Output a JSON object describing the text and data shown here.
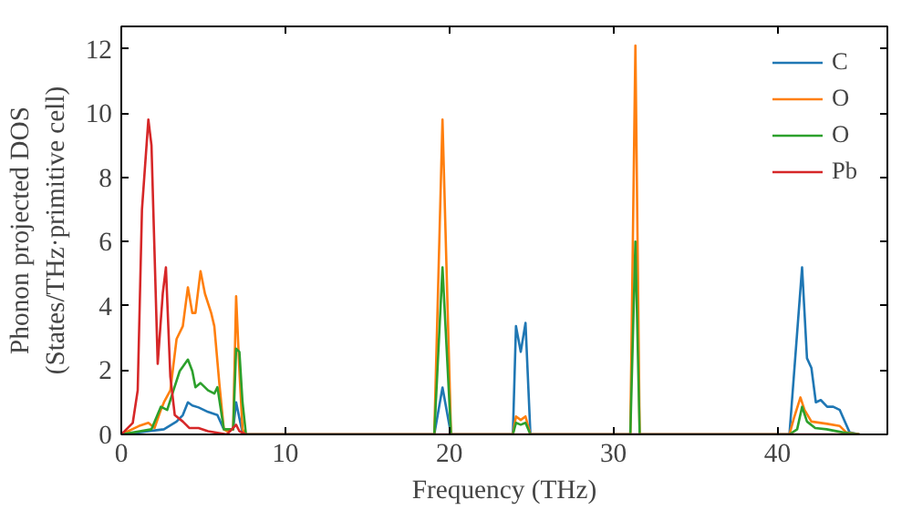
{
  "chart_data": {
    "type": "line",
    "xlabel": "Frequency (THz)",
    "ylabel": "Phonon projected DOS\n(States/THz·primitive cell)",
    "xlim": [
      0,
      46.7
    ],
    "ylim": [
      0,
      12.7
    ],
    "xticks": [
      0,
      10,
      20,
      30,
      40
    ],
    "yticks": [
      0,
      2,
      4,
      6,
      8,
      10,
      12
    ],
    "grid": false,
    "legend": "top right",
    "marker": "none",
    "line_style": "solid",
    "series": [
      {
        "name": "C",
        "color": "#1f77b4",
        "x": [
          0,
          2.6,
          3.37,
          3.75,
          4.06,
          4.33,
          4.71,
          5.29,
          5.86,
          6.25,
          6.82,
          7.0,
          7.2,
          7.39,
          7.6,
          19.08,
          19.58,
          20.1,
          23.87,
          24.06,
          24.35,
          24.64,
          24.94,
          40.73,
          41.5,
          41.8,
          42.07,
          42.34,
          42.64,
          43.03,
          43.4,
          43.8,
          44.4,
          45
        ],
        "values": [
          0,
          0.16,
          0.4,
          0.6,
          1.0,
          0.9,
          0.84,
          0.7,
          0.6,
          0.16,
          0.16,
          1.0,
          0.5,
          0.06,
          0,
          0,
          1.46,
          0,
          0,
          3.37,
          2.57,
          3.47,
          0,
          0,
          5.2,
          2.37,
          2.07,
          1.0,
          1.07,
          0.86,
          0.86,
          0.76,
          0.06,
          0
        ]
      },
      {
        "name": "O",
        "color": "#ff7f0e",
        "x": [
          0,
          1.07,
          1.65,
          2.03,
          2.41,
          2.6,
          2.99,
          3.37,
          3.75,
          4.06,
          4.33,
          4.52,
          4.83,
          5.1,
          5.48,
          5.67,
          5.98,
          6.25,
          6.44,
          6.82,
          7.0,
          7.2,
          7.39,
          7.6,
          19.08,
          19.58,
          20.1,
          23.87,
          24.06,
          24.35,
          24.64,
          24.94,
          31.03,
          31.34,
          31.6,
          40.73,
          41.0,
          41.4,
          41.65,
          42.07,
          43.03,
          43.8,
          44.2,
          45
        ],
        "values": [
          0,
          0.26,
          0.36,
          0.2,
          0.76,
          1.0,
          1.37,
          2.97,
          3.37,
          4.58,
          3.78,
          3.78,
          5.08,
          4.38,
          3.78,
          3.37,
          1.57,
          0.16,
          0.1,
          0.16,
          4.3,
          1.97,
          0.16,
          0,
          0,
          9.8,
          0,
          0,
          0.56,
          0.45,
          0.56,
          0,
          0,
          12.1,
          0,
          0,
          0.5,
          1.15,
          0.76,
          0.4,
          0.33,
          0.26,
          0.06,
          0
        ]
      },
      {
        "name": "O",
        "color": "#2ca02c",
        "x": [
          0,
          1.84,
          2.41,
          2.8,
          3.18,
          3.56,
          4.06,
          4.33,
          4.52,
          4.83,
          5.29,
          5.67,
          5.86,
          6.25,
          6.82,
          7.0,
          7.2,
          7.39,
          7.6,
          19.08,
          19.58,
          20.1,
          23.87,
          24.06,
          24.35,
          24.64,
          24.94,
          31.03,
          31.34,
          31.6,
          40.73,
          41.2,
          41.5,
          41.8,
          42.3,
          43.0,
          44.0,
          45
        ],
        "values": [
          0,
          0.16,
          0.86,
          0.76,
          1.37,
          1.97,
          2.33,
          1.97,
          1.47,
          1.6,
          1.37,
          1.27,
          1.47,
          0.16,
          0.16,
          2.67,
          2.57,
          1.0,
          0,
          0,
          5.2,
          0,
          0,
          0.36,
          0.3,
          0.36,
          0,
          0,
          6.0,
          0,
          0,
          0.16,
          0.86,
          0.4,
          0.2,
          0.16,
          0.06,
          0
        ]
      },
      {
        "name": "Pb",
        "color": "#d62728",
        "x": [
          0,
          0.7,
          1.0,
          1.26,
          1.65,
          1.84,
          2.22,
          2.53,
          2.72,
          2.99,
          3.26,
          3.75,
          4.14,
          4.71,
          5.29,
          6.44,
          7.0,
          7.2,
          7.6,
          45
        ],
        "values": [
          0,
          0.36,
          1.37,
          7.0,
          9.8,
          9.0,
          2.2,
          4.4,
          5.2,
          1.8,
          0.6,
          0.4,
          0.2,
          0.2,
          0.1,
          0,
          0.3,
          0.1,
          0,
          0
        ]
      }
    ]
  }
}
